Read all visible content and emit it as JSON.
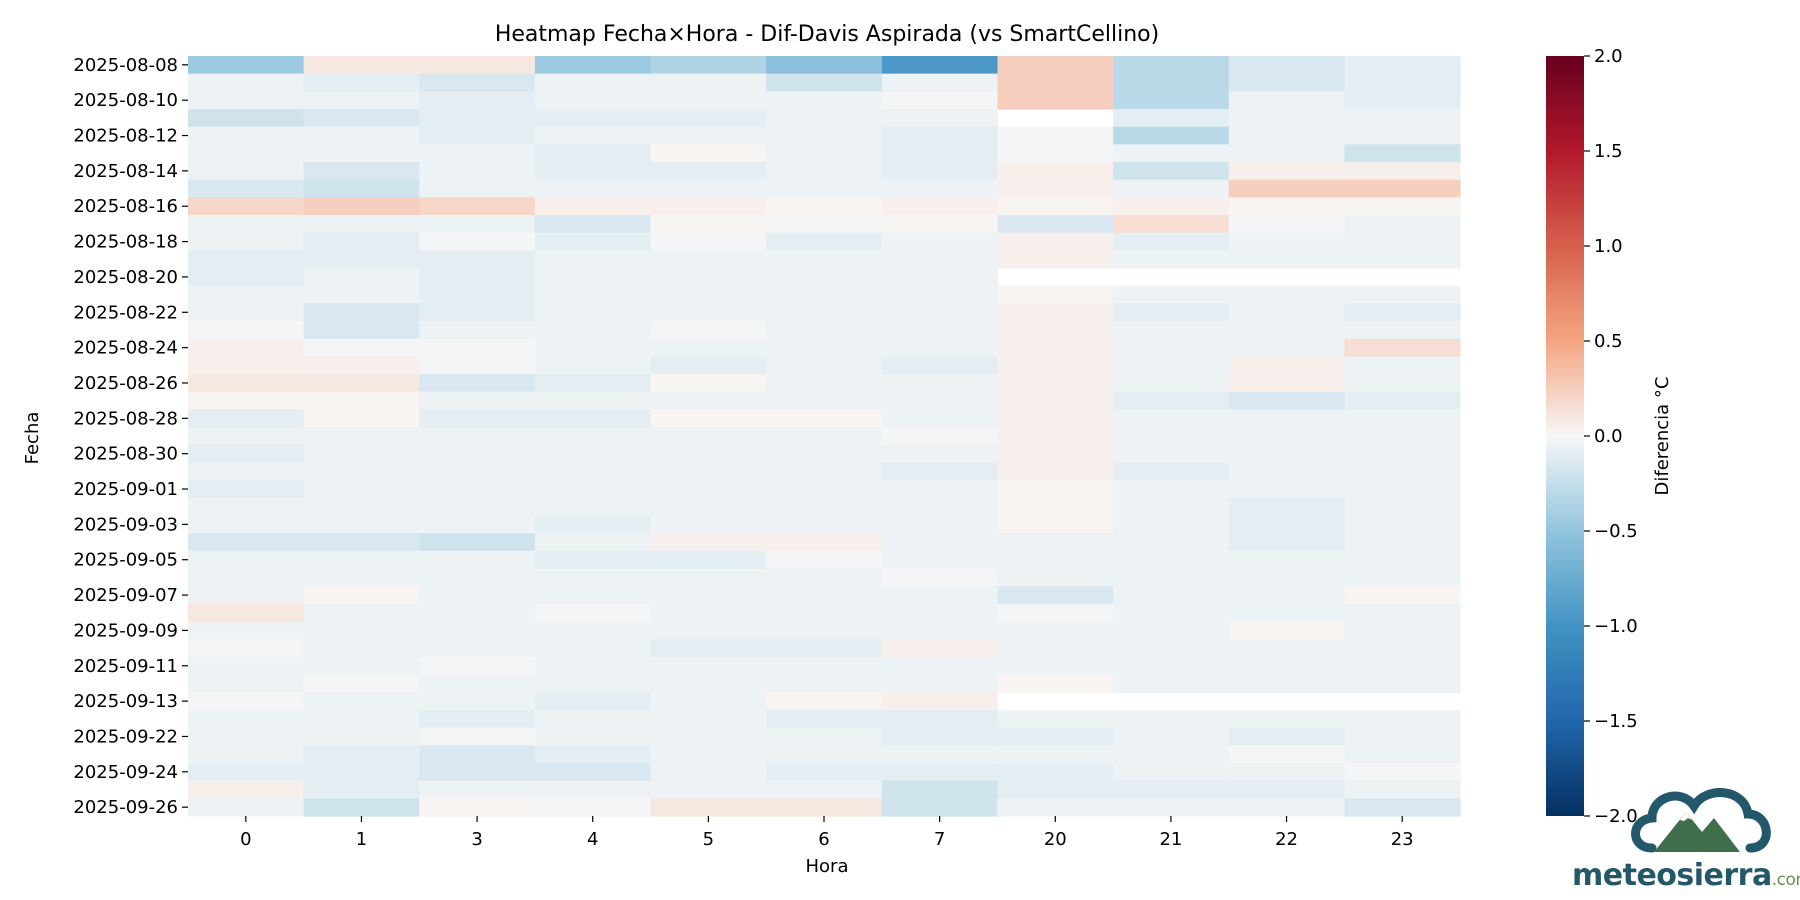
{
  "chart_data": {
    "type": "heatmap",
    "title": "Heatmap Fecha×Hora - Dif-Davis Aspirada (vs SmartCellino)",
    "xlabel": "Hora",
    "ylabel": "Fecha",
    "colorbar_label": "Diferencia °C",
    "colormap": "RdBu_r",
    "vmin": -2.0,
    "vmax": 2.0,
    "colorbar_ticks": [
      "2.0",
      "1.5",
      "1.0",
      "0.5",
      "0.0",
      "−0.5",
      "−1.0",
      "−1.5",
      "−2.0"
    ],
    "colorbar_tick_values": [
      2.0,
      1.5,
      1.0,
      0.5,
      0.0,
      -0.5,
      -1.0,
      -1.5,
      -2.0
    ],
    "x_categories": [
      "0",
      "1",
      "3",
      "4",
      "5",
      "6",
      "7",
      "20",
      "21",
      "22",
      "23"
    ],
    "y_categories": [
      "2025-08-08",
      "2025-08-09",
      "2025-08-10",
      "2025-08-11",
      "2025-08-12",
      "2025-08-13",
      "2025-08-14",
      "2025-08-15",
      "2025-08-16",
      "2025-08-17",
      "2025-08-18",
      "2025-08-19",
      "2025-08-20",
      "2025-08-21",
      "2025-08-22",
      "2025-08-23",
      "2025-08-24",
      "2025-08-25",
      "2025-08-26",
      "2025-08-27",
      "2025-08-28",
      "2025-08-29",
      "2025-08-30",
      "2025-08-31",
      "2025-09-01",
      "2025-09-02",
      "2025-09-03",
      "2025-09-04",
      "2025-09-05",
      "2025-09-06",
      "2025-09-07",
      "2025-09-08",
      "2025-09-09",
      "2025-09-10",
      "2025-09-11",
      "2025-09-12",
      "2025-09-13",
      "2025-09-21",
      "2025-09-22",
      "2025-09-23",
      "2025-09-24",
      "2025-09-25",
      "2025-09-26"
    ],
    "y_tick_labels": [
      "2025-08-08",
      "2025-08-10",
      "2025-08-12",
      "2025-08-14",
      "2025-08-16",
      "2025-08-18",
      "2025-08-20",
      "2025-08-22",
      "2025-08-24",
      "2025-08-26",
      "2025-08-28",
      "2025-08-30",
      "2025-09-01",
      "2025-09-03",
      "2025-09-05",
      "2025-09-07",
      "2025-09-09",
      "2025-09-11",
      "2025-09-13",
      "2025-09-22",
      "2025-09-24",
      "2025-09-26"
    ],
    "values": [
      [
        -0.45,
        0.1,
        0.1,
        -0.45,
        -0.35,
        -0.55,
        -0.95,
        0.25,
        -0.3,
        -0.15,
        -0.1
      ],
      [
        -0.05,
        -0.1,
        -0.15,
        -0.05,
        -0.05,
        -0.2,
        -0.05,
        0.25,
        -0.3,
        -0.15,
        -0.1
      ],
      [
        -0.05,
        -0.05,
        -0.1,
        -0.05,
        -0.05,
        -0.05,
        -0.02,
        0.25,
        -0.3,
        -0.05,
        -0.1
      ],
      [
        -0.2,
        -0.15,
        -0.1,
        -0.1,
        -0.1,
        -0.05,
        -0.05,
        null,
        -0.1,
        -0.05,
        -0.05
      ],
      [
        -0.05,
        -0.05,
        -0.1,
        -0.05,
        -0.05,
        -0.05,
        -0.1,
        -0.02,
        -0.3,
        -0.05,
        -0.05
      ],
      [
        -0.05,
        -0.05,
        -0.05,
        -0.1,
        0.02,
        -0.05,
        -0.1,
        -0.02,
        -0.05,
        -0.05,
        -0.2
      ],
      [
        -0.05,
        -0.15,
        -0.05,
        -0.1,
        -0.1,
        -0.05,
        -0.1,
        0.05,
        -0.2,
        0.05,
        0.05
      ],
      [
        -0.15,
        -0.2,
        -0.05,
        -0.05,
        -0.05,
        -0.05,
        -0.05,
        0.05,
        -0.05,
        0.25,
        0.25
      ],
      [
        0.2,
        0.25,
        0.2,
        0.05,
        0.05,
        0.02,
        0.05,
        0.02,
        0.05,
        0.02,
        0.02
      ],
      [
        -0.05,
        -0.05,
        -0.05,
        -0.15,
        0.02,
        -0.02,
        0.02,
        -0.15,
        0.15,
        -0.02,
        -0.05
      ],
      [
        -0.05,
        -0.1,
        -0.02,
        -0.1,
        -0.02,
        -0.1,
        -0.05,
        0.05,
        -0.1,
        -0.05,
        -0.05
      ],
      [
        -0.1,
        -0.1,
        -0.1,
        -0.05,
        -0.05,
        -0.05,
        -0.05,
        0.05,
        -0.05,
        -0.05,
        -0.05
      ],
      [
        -0.1,
        -0.05,
        -0.1,
        -0.05,
        -0.05,
        -0.05,
        -0.05,
        null,
        null,
        null,
        null
      ],
      [
        -0.05,
        -0.05,
        -0.1,
        -0.05,
        -0.05,
        -0.05,
        -0.05,
        0.02,
        -0.05,
        -0.05,
        -0.05
      ],
      [
        -0.05,
        -0.15,
        -0.1,
        -0.05,
        -0.05,
        -0.05,
        -0.05,
        0.05,
        -0.1,
        -0.05,
        -0.1
      ],
      [
        -0.02,
        -0.15,
        -0.05,
        -0.05,
        -0.02,
        -0.05,
        -0.05,
        0.05,
        -0.05,
        -0.05,
        -0.05
      ],
      [
        0.05,
        -0.02,
        -0.02,
        -0.05,
        -0.05,
        -0.05,
        -0.05,
        0.05,
        -0.05,
        -0.05,
        0.15
      ],
      [
        0.05,
        0.05,
        -0.02,
        -0.05,
        -0.1,
        -0.05,
        -0.1,
        0.05,
        -0.05,
        0.05,
        -0.05
      ],
      [
        0.1,
        0.1,
        -0.15,
        -0.1,
        0.02,
        -0.05,
        -0.05,
        0.05,
        -0.05,
        0.05,
        -0.05
      ],
      [
        0.02,
        0.02,
        -0.05,
        -0.05,
        -0.05,
        -0.05,
        -0.05,
        0.05,
        -0.1,
        -0.15,
        -0.1
      ],
      [
        -0.1,
        0.02,
        -0.1,
        -0.1,
        0.02,
        0.02,
        -0.05,
        0.05,
        -0.05,
        -0.05,
        -0.05
      ],
      [
        -0.05,
        -0.05,
        -0.05,
        -0.05,
        -0.05,
        -0.05,
        -0.02,
        0.05,
        -0.05,
        -0.05,
        -0.05
      ],
      [
        -0.1,
        -0.05,
        -0.05,
        -0.05,
        -0.05,
        -0.05,
        -0.05,
        0.05,
        -0.05,
        -0.05,
        -0.05
      ],
      [
        -0.05,
        -0.05,
        -0.05,
        -0.05,
        -0.05,
        -0.05,
        -0.1,
        0.05,
        -0.1,
        -0.05,
        -0.05
      ],
      [
        -0.1,
        -0.05,
        -0.05,
        -0.05,
        -0.05,
        -0.05,
        -0.05,
        0.02,
        -0.05,
        -0.05,
        -0.05
      ],
      [
        -0.05,
        -0.05,
        -0.05,
        -0.05,
        -0.05,
        -0.05,
        -0.05,
        0.02,
        -0.05,
        -0.1,
        -0.05
      ],
      [
        -0.05,
        -0.05,
        -0.05,
        -0.1,
        -0.05,
        -0.05,
        -0.05,
        0.02,
        -0.05,
        -0.1,
        -0.05
      ],
      [
        -0.15,
        -0.15,
        -0.2,
        -0.05,
        0.05,
        0.05,
        -0.05,
        -0.05,
        -0.05,
        -0.1,
        -0.05
      ],
      [
        -0.05,
        -0.05,
        -0.05,
        -0.1,
        -0.1,
        -0.02,
        -0.05,
        -0.05,
        -0.05,
        -0.05,
        -0.05
      ],
      [
        -0.05,
        -0.05,
        -0.05,
        -0.05,
        -0.05,
        -0.05,
        -0.02,
        -0.05,
        -0.05,
        -0.05,
        -0.05
      ],
      [
        -0.05,
        0.02,
        -0.05,
        -0.05,
        -0.05,
        -0.05,
        -0.05,
        -0.15,
        -0.05,
        -0.05,
        0.02
      ],
      [
        0.1,
        -0.05,
        -0.05,
        -0.02,
        -0.05,
        -0.05,
        -0.05,
        -0.02,
        -0.05,
        -0.05,
        -0.05
      ],
      [
        -0.05,
        -0.05,
        -0.05,
        -0.05,
        -0.05,
        -0.05,
        -0.05,
        -0.05,
        -0.05,
        0.02,
        -0.05
      ],
      [
        -0.02,
        -0.05,
        -0.05,
        -0.05,
        -0.1,
        -0.1,
        0.05,
        -0.05,
        -0.05,
        -0.05,
        -0.05
      ],
      [
        -0.05,
        -0.05,
        -0.02,
        -0.05,
        -0.05,
        -0.05,
        -0.05,
        -0.05,
        -0.05,
        -0.05,
        -0.05
      ],
      [
        -0.05,
        -0.02,
        -0.05,
        -0.05,
        -0.05,
        -0.05,
        -0.05,
        0.02,
        -0.05,
        -0.05,
        -0.05
      ],
      [
        -0.02,
        -0.05,
        -0.05,
        -0.1,
        -0.05,
        0.02,
        0.05,
        null,
        null,
        null,
        null
      ],
      [
        -0.05,
        -0.05,
        -0.1,
        -0.05,
        -0.05,
        -0.1,
        -0.1,
        -0.05,
        -0.05,
        -0.05,
        -0.05
      ],
      [
        -0.05,
        -0.05,
        -0.02,
        -0.05,
        -0.05,
        -0.05,
        -0.1,
        -0.1,
        -0.05,
        -0.1,
        -0.05
      ],
      [
        -0.05,
        -0.1,
        -0.15,
        -0.1,
        -0.05,
        -0.05,
        -0.05,
        -0.05,
        -0.05,
        -0.02,
        -0.05
      ],
      [
        -0.1,
        -0.1,
        -0.15,
        -0.15,
        -0.05,
        -0.1,
        -0.1,
        -0.1,
        -0.05,
        -0.05,
        -0.02
      ],
      [
        0.05,
        -0.1,
        -0.05,
        -0.05,
        -0.05,
        -0.05,
        -0.2,
        -0.1,
        -0.1,
        -0.1,
        -0.05
      ],
      [
        -0.05,
        -0.2,
        0.02,
        -0.02,
        0.1,
        0.1,
        -0.2,
        -0.05,
        -0.05,
        -0.05,
        -0.15
      ]
    ]
  },
  "logo": {
    "name": "meteosierra",
    "tld": ".com"
  }
}
